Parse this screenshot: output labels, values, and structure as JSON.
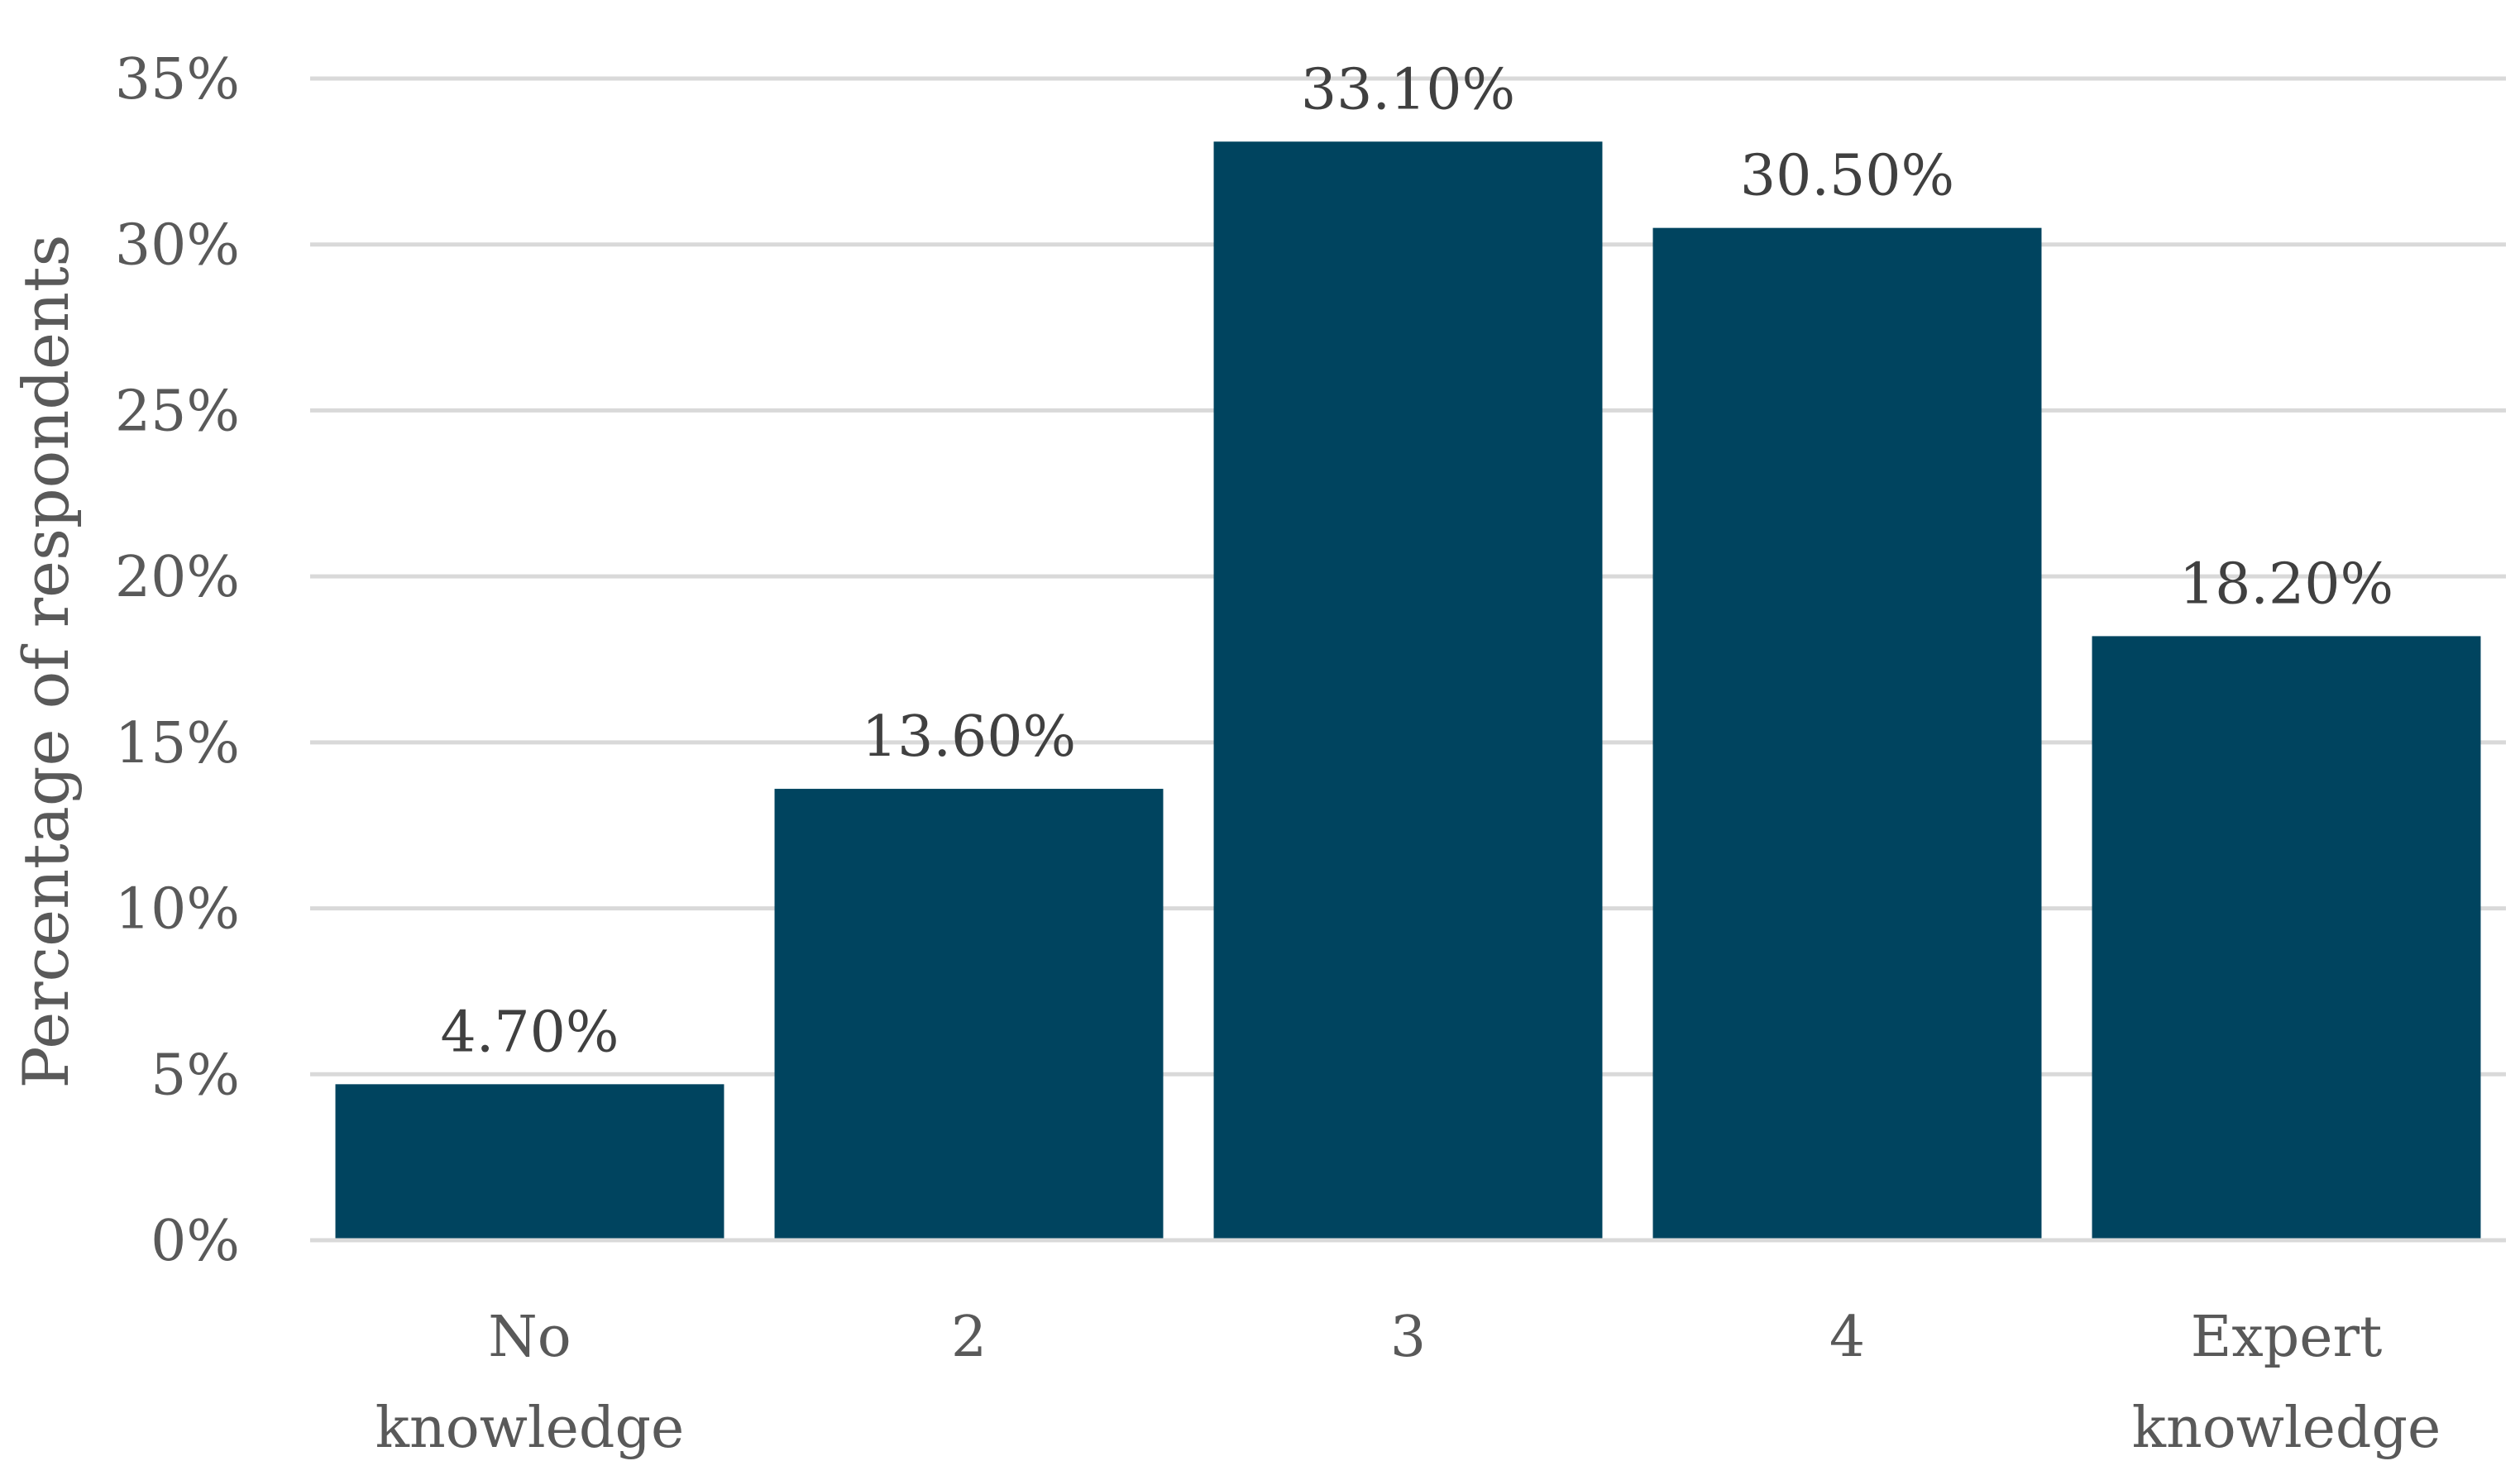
{
  "chart_data": {
    "type": "bar",
    "categories": [
      [
        "No",
        "knowledge"
      ],
      [
        "2"
      ],
      [
        "3"
      ],
      [
        "4"
      ],
      [
        "Expert",
        "knowledge"
      ]
    ],
    "values": [
      4.7,
      13.6,
      33.1,
      30.5,
      18.2
    ],
    "data_labels": [
      "4.70%",
      "13.60%",
      "33.10%",
      "30.50%",
      "18.20%"
    ],
    "ylabel": "Percentage of respondents",
    "ylim": [
      0,
      35
    ],
    "yticks": [
      0,
      5,
      10,
      15,
      20,
      25,
      30,
      35
    ],
    "ytick_labels": [
      "0%",
      "5%",
      "10%",
      "15%",
      "20%",
      "25%",
      "30%",
      "35%"
    ],
    "grid": true,
    "legend": "none",
    "colors": {
      "bar": "#00445f"
    }
  }
}
